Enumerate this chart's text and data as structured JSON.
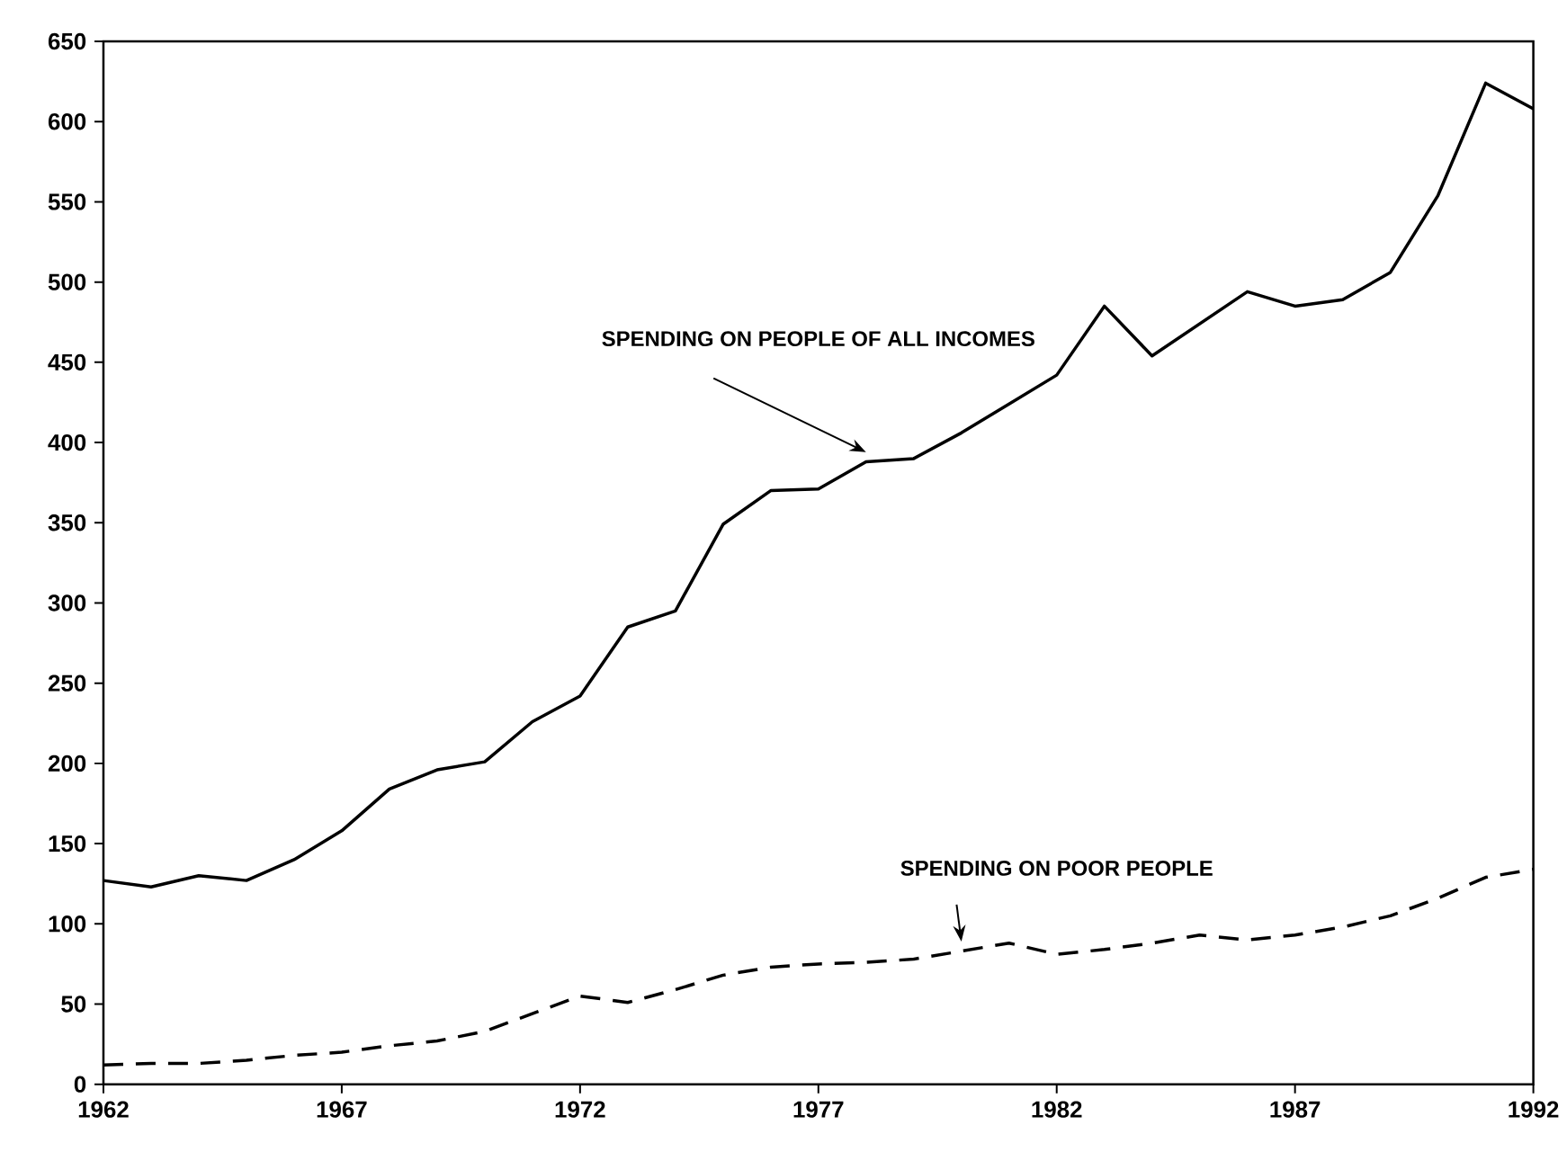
{
  "chart_data": {
    "type": "line",
    "x": [
      1962,
      1963,
      1964,
      1965,
      1966,
      1967,
      1968,
      1969,
      1970,
      1971,
      1972,
      1973,
      1974,
      1975,
      1976,
      1977,
      1978,
      1979,
      1980,
      1981,
      1982,
      1983,
      1984,
      1985,
      1986,
      1987,
      1988,
      1989,
      1990,
      1991,
      1992
    ],
    "series": [
      {
        "name": "SPENDING ON PEOPLE OF ALL INCOMES",
        "color": "#000000",
        "line_style": "solid",
        "values": [
          127,
          123,
          130,
          127,
          140,
          158,
          184,
          196,
          201,
          226,
          242,
          285,
          295,
          349,
          370,
          371,
          388,
          390,
          406,
          424,
          442,
          485,
          454,
          474,
          494,
          485,
          489,
          506,
          554,
          624,
          608
        ]
      },
      {
        "name": "SPENDING ON POOR PEOPLE",
        "color": "#000000",
        "line_style": "dashed",
        "values": [
          12,
          13,
          13,
          15,
          18,
          20,
          24,
          27,
          33,
          44,
          55,
          51,
          59,
          68,
          73,
          75,
          76,
          78,
          83,
          88,
          81,
          84,
          88,
          93,
          90,
          93,
          98,
          105,
          116,
          129,
          134
        ]
      }
    ],
    "xlim": [
      1962,
      1992
    ],
    "xticks": [
      1962,
      1967,
      1972,
      1977,
      1982,
      1987,
      1992
    ],
    "ylim": [
      0,
      650
    ],
    "yticks": [
      0,
      50,
      100,
      150,
      200,
      250,
      300,
      350,
      400,
      450,
      500,
      550,
      600,
      650
    ],
    "grid": false,
    "legend": false,
    "marker": "none"
  }
}
